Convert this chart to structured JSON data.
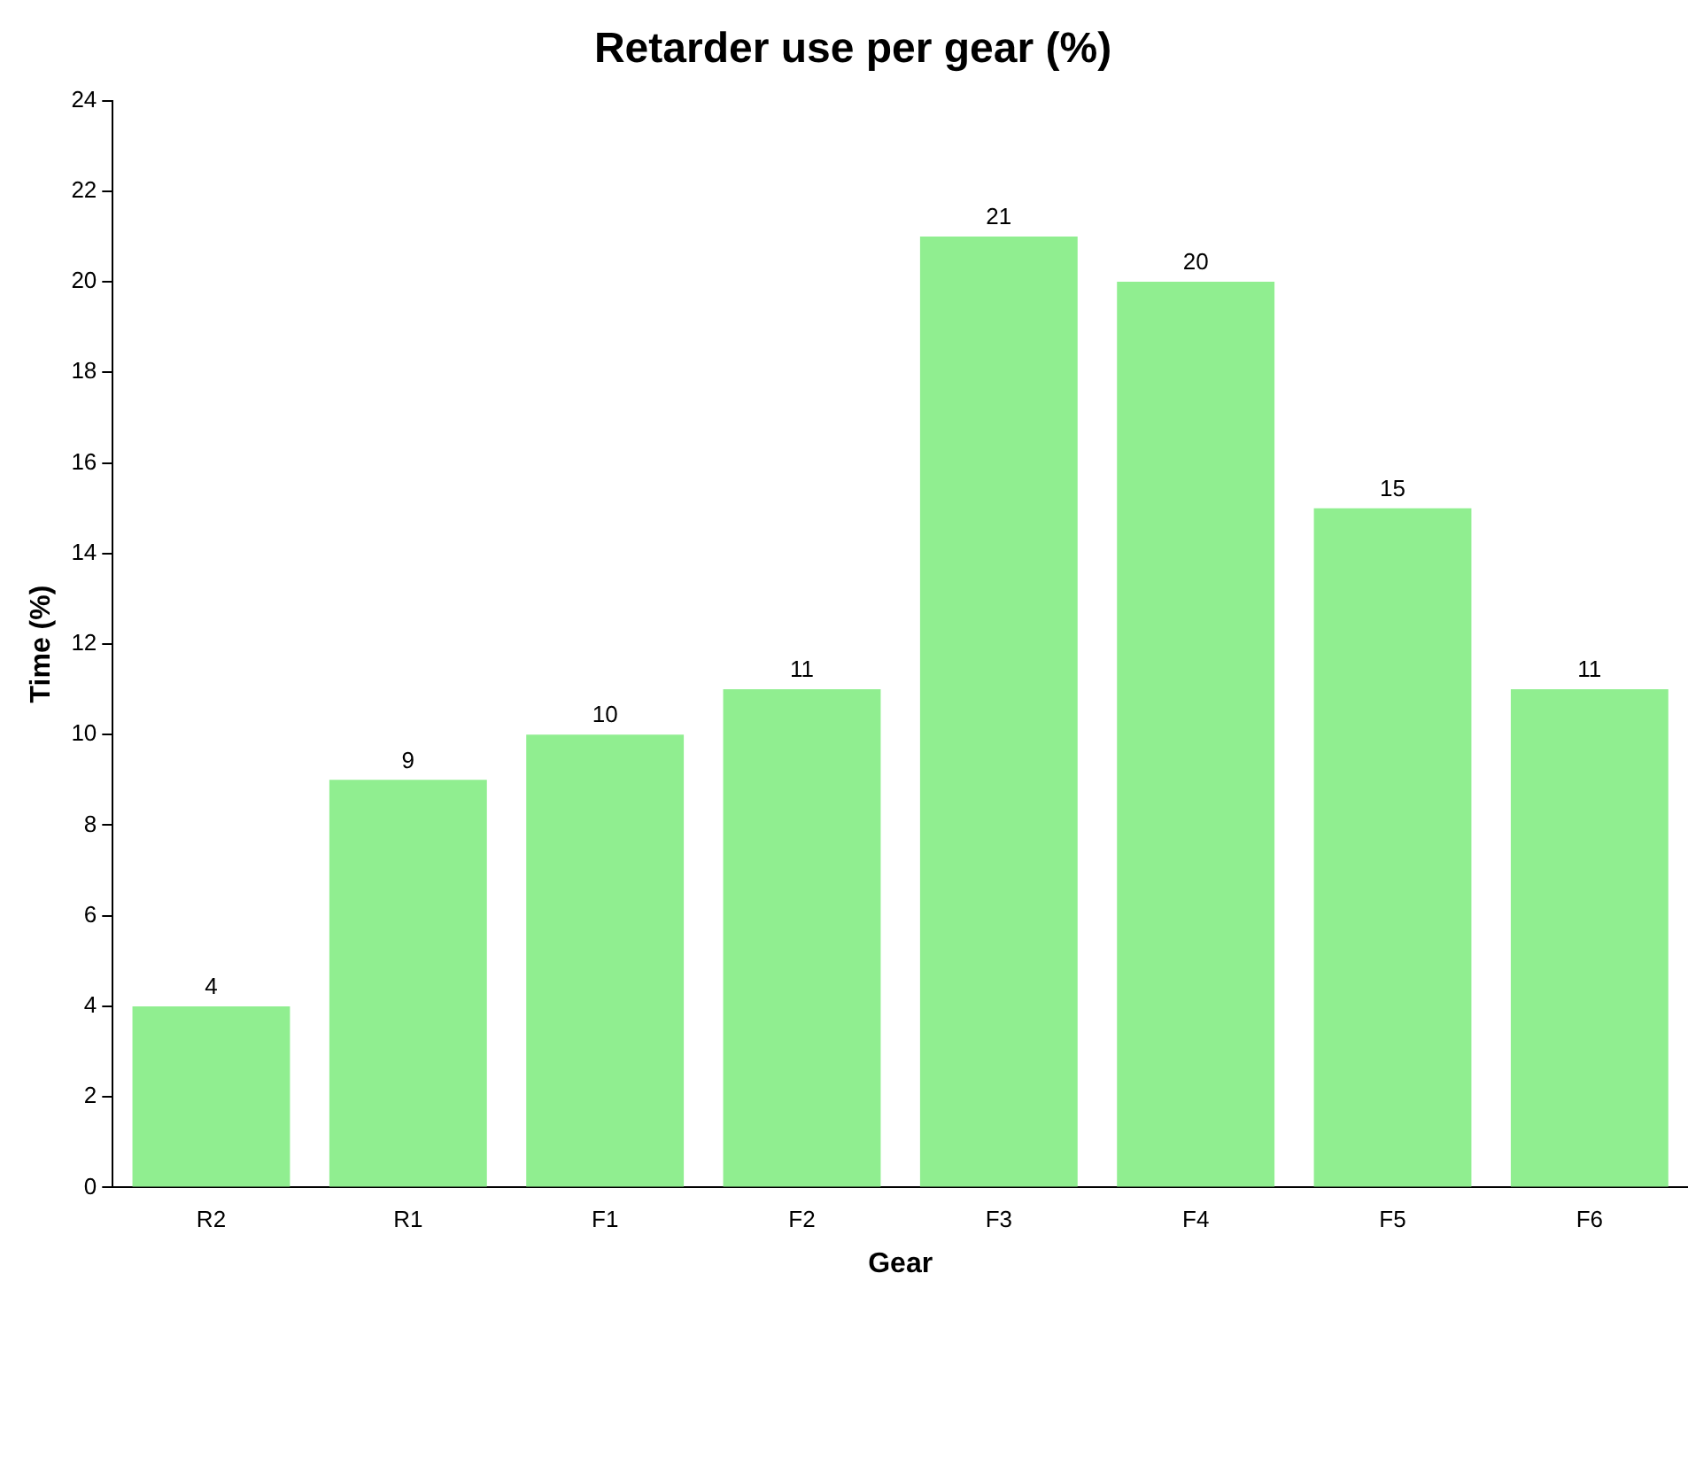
{
  "chart_data": {
    "type": "bar",
    "title": "Retarder use per gear (%)",
    "xlabel": "Gear",
    "ylabel": "Time (%)",
    "categories": [
      "R2",
      "R1",
      "F1",
      "F2",
      "F3",
      "F4",
      "F5",
      "F6"
    ],
    "values": [
      4,
      9,
      10,
      11,
      21,
      20,
      15,
      11
    ],
    "color": "#90ee90",
    "ylim": [
      0,
      24
    ],
    "yticks": [
      0,
      2,
      4,
      6,
      8,
      10,
      12,
      14,
      16,
      18,
      20,
      22,
      24
    ],
    "data_labels": true,
    "legend": false,
    "grid": false
  }
}
